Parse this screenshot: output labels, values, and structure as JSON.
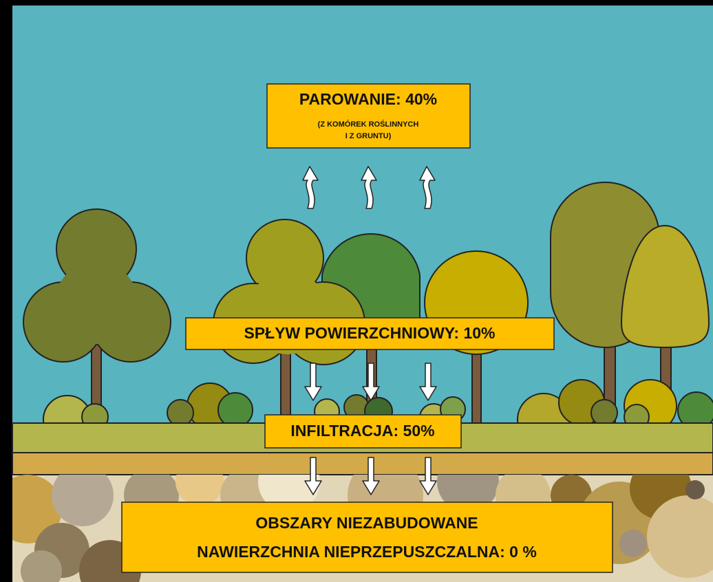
{
  "evaporation": {
    "title": "PAROWANIE: 40%",
    "note": [
      "(Z KOMÓREK ROŚLINNYCH",
      "I Z GRUNTU)"
    ]
  },
  "runoff": {
    "title": "SPŁYW POWIERZCHNIOWY: 10%"
  },
  "infiltration": {
    "title": "INFILTRACJA: 50%"
  },
  "footer": {
    "lines": [
      "OBSZARY NIEZABUDOWANE",
      "NAWIERZCHNIA NIEPRZEPUSZCZALNA: 0 %"
    ]
  }
}
